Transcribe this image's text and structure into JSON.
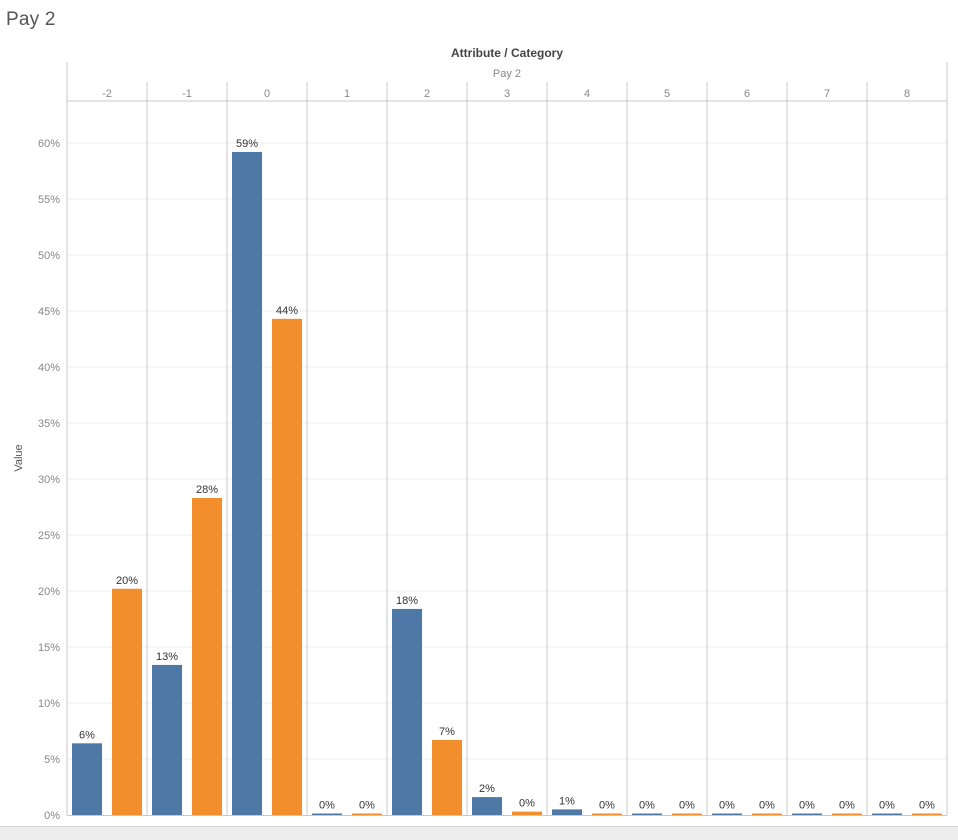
{
  "sheet": {
    "title": "Pay 2"
  },
  "colors": {
    "series_a": "#4e79a7",
    "series_b": "#f28e2b",
    "gridline": "#efefef",
    "divider": "#c8c8c8",
    "axis_text": "#888888",
    "label_text": "#333333"
  },
  "chart_data": {
    "type": "bar",
    "title": "Attribute / Category",
    "column_header": "Pay 2",
    "ylabel": "Value",
    "xlabel": "",
    "categories": [
      "-2",
      "-1",
      "0",
      "1",
      "2",
      "3",
      "4",
      "5",
      "6",
      "7",
      "8"
    ],
    "series": [
      {
        "values": [
          6.4,
          13.4,
          59.2,
          0.1,
          18.4,
          1.6,
          0.5,
          0.1,
          0.0,
          0.1,
          0.0
        ],
        "labels": [
          "6%",
          "13%",
          "59%",
          "0%",
          "18%",
          "2%",
          "1%",
          "0%",
          "0%",
          "0%",
          "0%"
        ]
      },
      {
        "values": [
          20.2,
          28.3,
          44.3,
          0.1,
          6.7,
          0.3,
          0.1,
          0.0,
          0.0,
          0.0,
          0.0
        ],
        "labels": [
          "20%",
          "28%",
          "44%",
          "0%",
          "7%",
          "0%",
          "0%",
          "0%",
          "0%",
          "0%",
          "0%"
        ]
      }
    ],
    "ylim": [
      0,
      64
    ],
    "yticks": [
      0,
      5,
      10,
      15,
      20,
      25,
      30,
      35,
      40,
      45,
      50,
      55,
      60
    ],
    "ytick_labels": [
      "0%",
      "5%",
      "10%",
      "15%",
      "20%",
      "25%",
      "30%",
      "35%",
      "40%",
      "45%",
      "50%",
      "55%",
      "60%"
    ],
    "grid": true,
    "legend": "none"
  }
}
